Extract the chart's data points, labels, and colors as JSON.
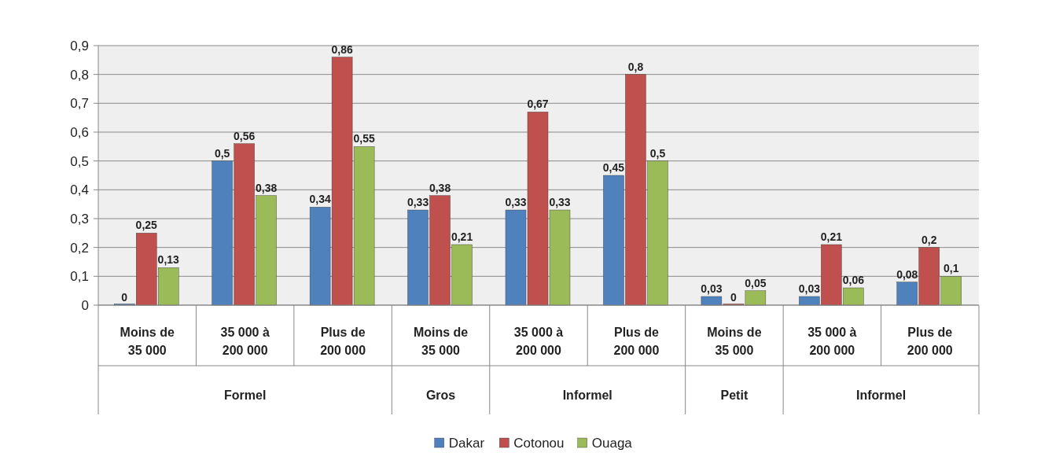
{
  "chart_data": {
    "type": "bar",
    "categories": [
      "Moins de 35 000",
      "35 000 à 200 000",
      "Plus de 200 000",
      "Moins de 35 000",
      "35 000 à 200 000",
      "Plus de 200 000",
      "Moins de 35 000",
      "35 000 à 200 000",
      "Plus de 200 000"
    ],
    "annotations": [
      "Formel",
      "Gros",
      "Informel",
      "Petit",
      "Informel"
    ],
    "series": [
      {
        "name": "Dakar",
        "color": "#4f81bd",
        "values": [
          0,
          0.5,
          0.34,
          0.33,
          0.33,
          0.45,
          0.03,
          0.03,
          0.08
        ],
        "value_labels": [
          "0",
          "0,5",
          "0,34",
          "0,33",
          "0,33",
          "0,45",
          "0,03",
          "0,03",
          "0,08"
        ]
      },
      {
        "name": "Cotonou",
        "color": "#c0504d",
        "values": [
          0.25,
          0.56,
          0.86,
          0.38,
          0.67,
          0.8,
          0,
          0.21,
          0.2
        ],
        "value_labels": [
          "0,25",
          "0,56",
          "0,86",
          "0,38",
          "0,67",
          "0,8",
          "0",
          "0,21",
          "0,2"
        ]
      },
      {
        "name": "Ouaga",
        "color": "#9bbb59",
        "values": [
          0.13,
          0.38,
          0.55,
          0.21,
          0.33,
          0.5,
          0.05,
          0.06,
          0.1
        ],
        "value_labels": [
          "0,13",
          "0,38",
          "0,55",
          "0,21",
          "0,33",
          "0,5",
          "0,05",
          "0,06",
          "0,1"
        ]
      }
    ],
    "ylim": [
      0,
      0.9
    ],
    "yticks": [
      0,
      {
        "value": 0.1,
        "label": "0,1"
      },
      {
        "value": 0.2,
        "label": "0,2"
      },
      {
        "value": 0.3,
        "label": "0,3"
      },
      {
        "value": 0.4,
        "label": "0,4"
      },
      {
        "value": 0.5,
        "label": "0,5"
      },
      {
        "value": 0.6,
        "label": "0,6"
      },
      {
        "value": 0.7,
        "label": "0,7"
      },
      {
        "value": 0.8,
        "label": "0,8"
      },
      {
        "value": 0.9,
        "label": "0,9"
      }
    ],
    "grid": "y",
    "legend": "bottom"
  }
}
